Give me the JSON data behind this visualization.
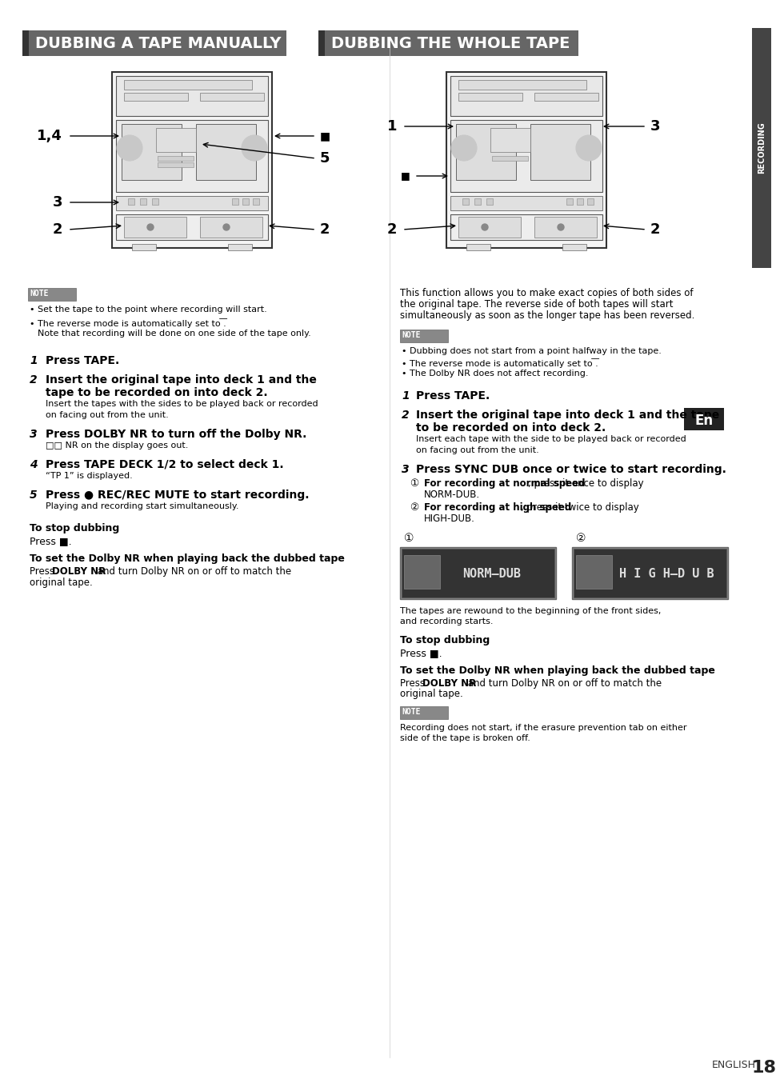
{
  "bg_color": "#ffffff",
  "left_title": "DUBBING A TAPE MANUALLY",
  "right_title": "DUBBING THE WHOLE TAPE",
  "footer_text": "ENGLISH  18",
  "left_notes": [
    "Set the tape to the point where recording will start.",
    "The reverse mode is automatically set to ͞.",
    "Note that recording will be done on one side of the tape only."
  ],
  "left_steps": [
    {
      "num": "1",
      "bold": "Press TAPE."
    },
    {
      "num": "2",
      "bold": "Insert the original tape into deck 1 and the tape to be recorded on into deck 2.",
      "normal": "Insert the tapes with the sides to be played back or recorded\non facing out from the unit."
    },
    {
      "num": "3",
      "bold": "Press DOLBY NR to turn off the Dolby NR.",
      "normal": "□□ NR on the display goes out."
    },
    {
      "num": "4",
      "bold": "Press TAPE DECK 1/2 to select deck 1.",
      "normal": "“TP 1” is displayed."
    },
    {
      "num": "5",
      "bold": "Press ● REC/REC MUTE to start recording.",
      "normal": "Playing and recording start simultaneously."
    }
  ],
  "right_intro": "This function allows you to make exact copies of both sides of\nthe original tape. The reverse side of both tapes will start\nsimultaneously as soon as the longer tape has been reversed.",
  "right_notes": [
    "Dubbing does not start from a point halfway in the tape.",
    "The reverse mode is automatically set to ͞͞.",
    "The Dolby NR does not affect recording."
  ],
  "right_steps": [
    {
      "num": "1",
      "bold": "Press TAPE."
    },
    {
      "num": "2",
      "bold": "Insert the original tape into deck 1 and the tape to be recorded on into deck 2.",
      "normal": "Insert each tape with the side to be played back or recorded\non facing out from the unit."
    },
    {
      "num": "3",
      "bold": "Press SYNC DUB once or twice to start recording.",
      "sub1_bold": "For recording at normal speed",
      "sub1_normal": ", press it once to display\nNORM-DUB.",
      "sub2_bold": "For recording at high speed",
      "sub2_normal": ", press it twice to display\nHIGH-DUB."
    }
  ],
  "right_note2": "Recording does not start, if the erasure prevention tab on either\nside of the tape is broken off.",
  "norm_dub_text": "NORM–DUB",
  "high_dub_text": "H I G H–D U B"
}
